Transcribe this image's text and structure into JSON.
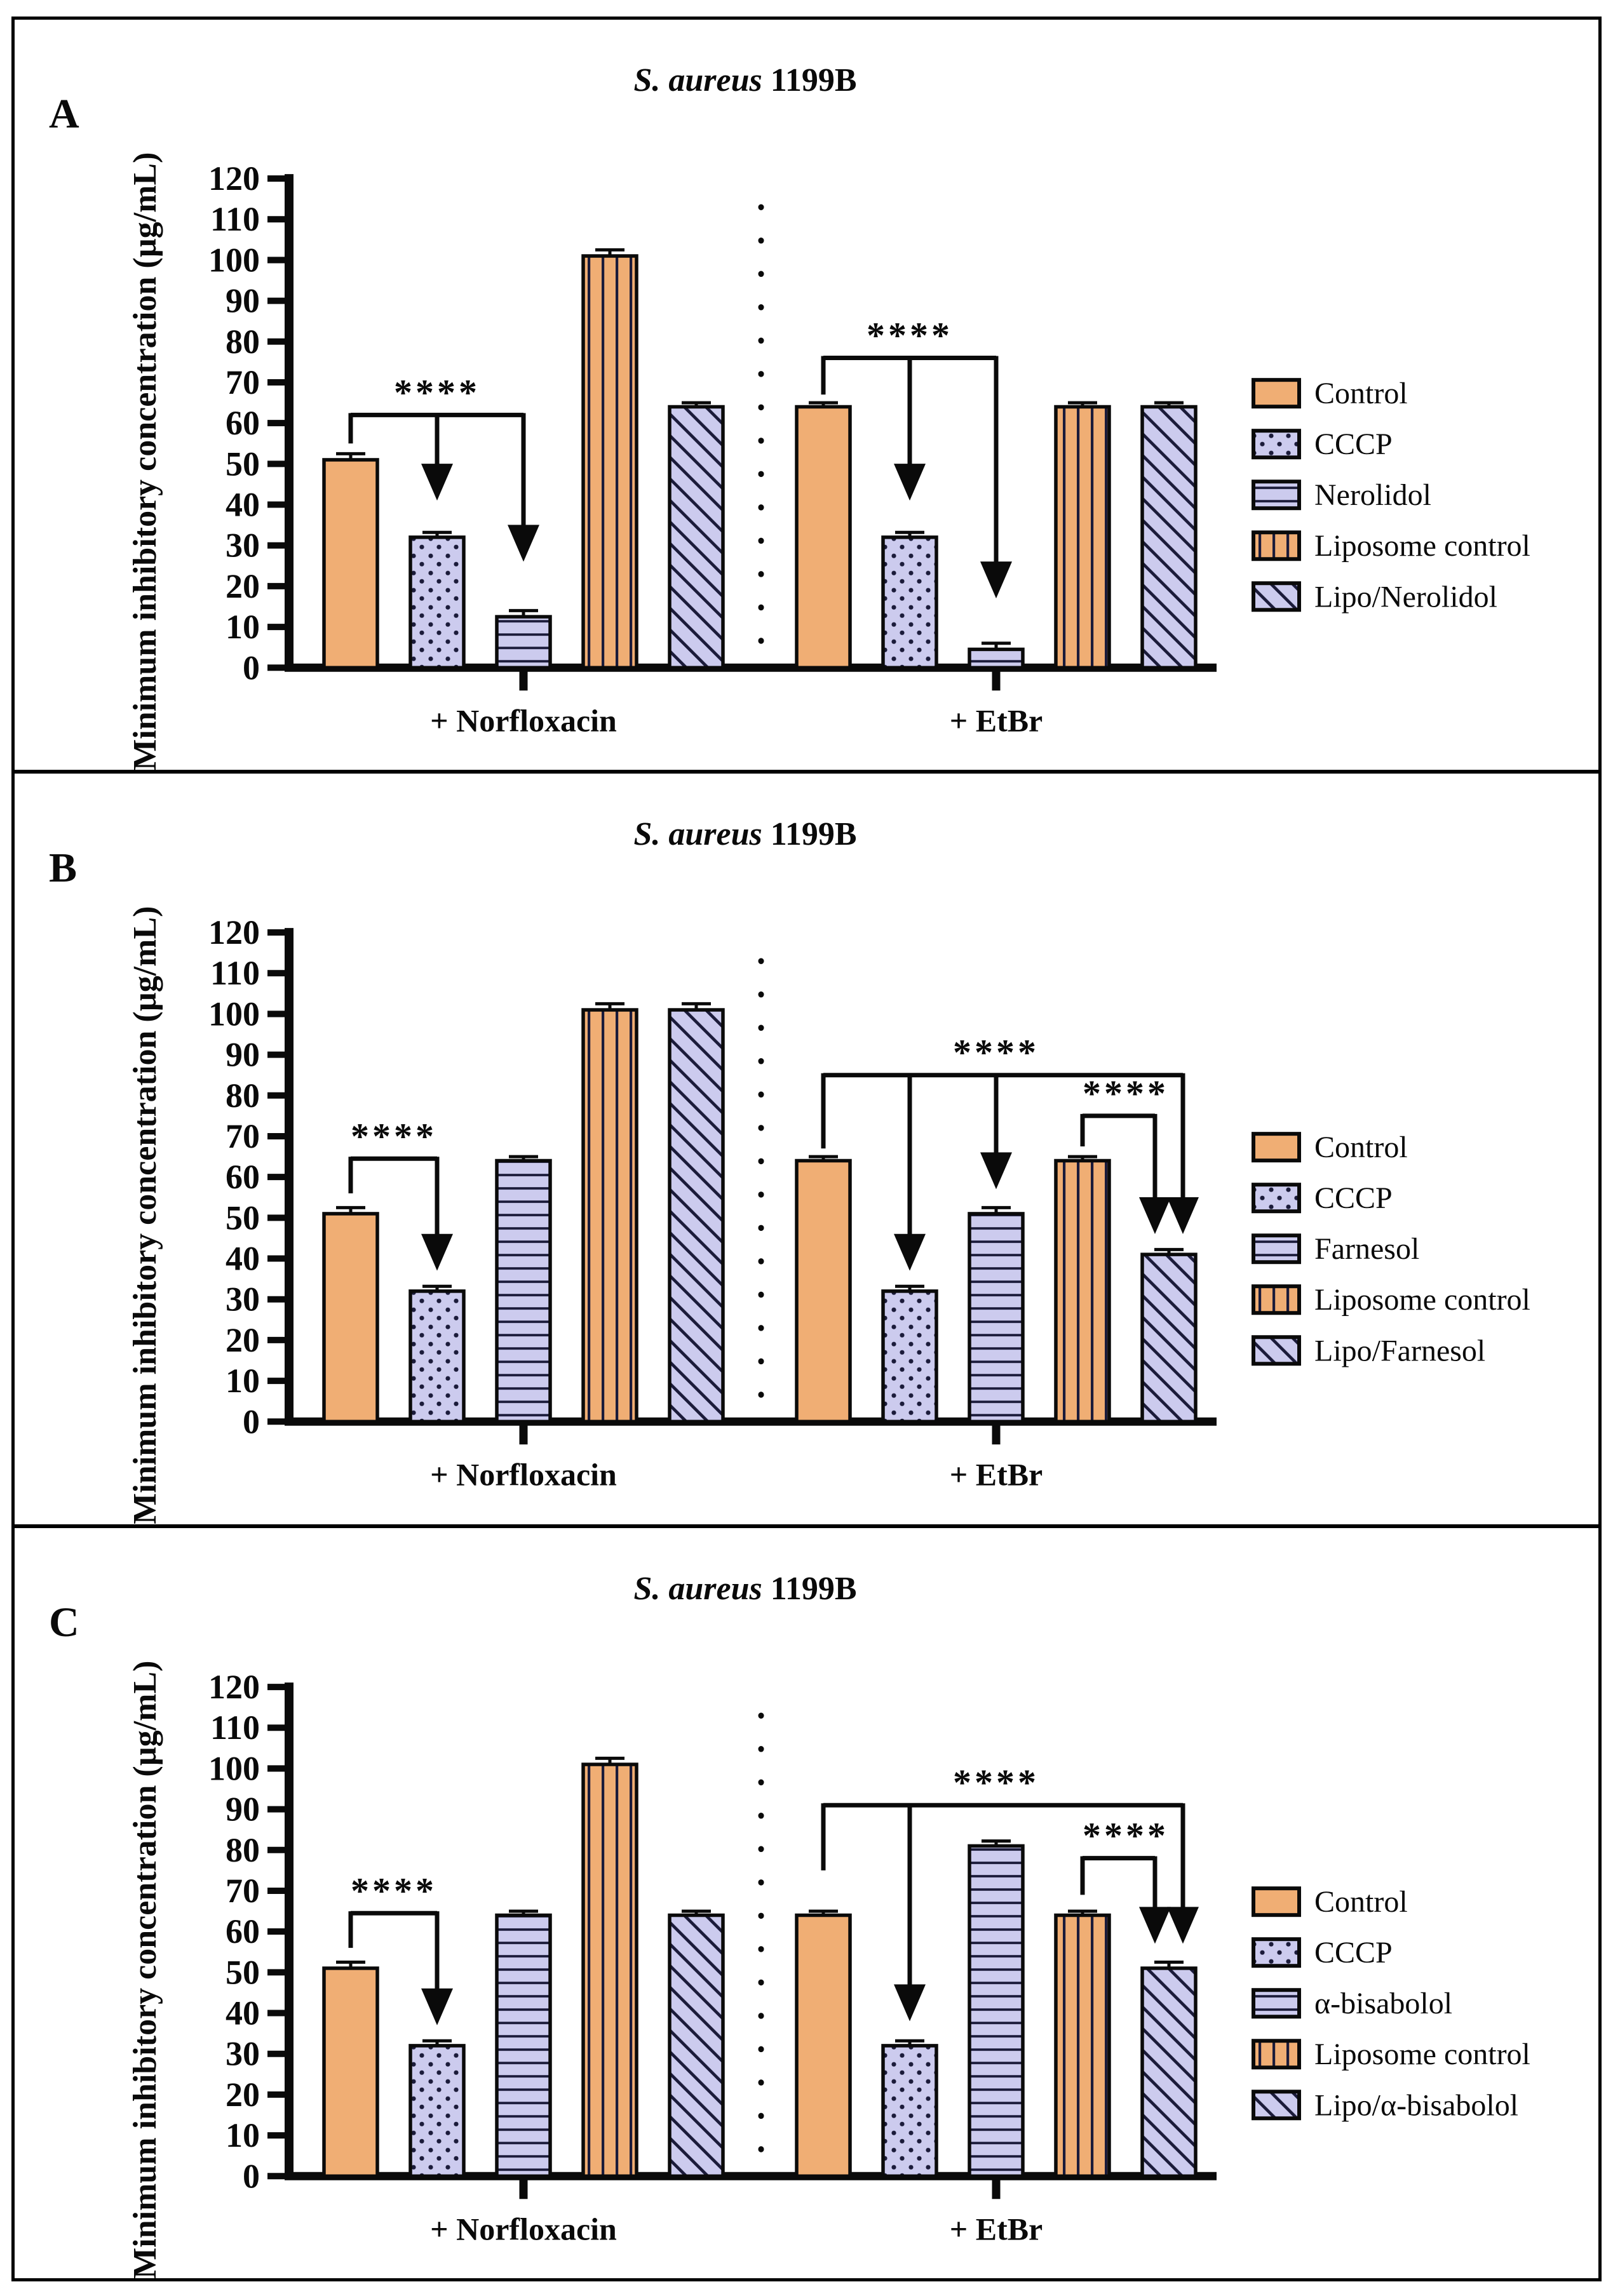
{
  "figure": {
    "background": "#ffffff",
    "border_color": "#000000"
  },
  "colors": {
    "orange": "#f0ae74",
    "periwinkle": "#cccbee",
    "pattern_line": "#1b1b3a",
    "ink": "#0a0a0a"
  },
  "chart_data": [
    {
      "type": "bar",
      "panel_label": "A",
      "title": {
        "italic": "S. aureus",
        "rest": " 1199B"
      },
      "ylabel": "Minimum inhibitory concentration (µg/mL)",
      "ylim": [
        0,
        120
      ],
      "ytick_step": 10,
      "grid": false,
      "legend_position": "right",
      "series": [
        {
          "name": "Control",
          "pattern": "solid"
        },
        {
          "name": "CCCP",
          "pattern": "dots"
        },
        {
          "name": "Nerolidol",
          "pattern": "hlines"
        },
        {
          "name": "Liposome control",
          "pattern": "vlines"
        },
        {
          "name": "Lipo/Nerolidol",
          "pattern": "diag"
        }
      ],
      "groups": [
        {
          "label": "+ Norfloxacin",
          "values": [
            51,
            32,
            12.5,
            101,
            64
          ],
          "errors": [
            1.5,
            1.2,
            1.5,
            1.5,
            1
          ]
        },
        {
          "label": "+ EtBr",
          "values": [
            64,
            32,
            4.5,
            64,
            64
          ],
          "errors": [
            1,
            1.2,
            1.5,
            1,
            1
          ]
        }
      ],
      "significance": [
        {
          "label": "****",
          "y": 62,
          "x1": [
            0,
            0
          ],
          "x2": [
            0,
            2
          ],
          "drop_to": 55,
          "arrows": [
            [
              0,
              1,
              41,
              0
            ],
            [
              0,
              2,
              26,
              0
            ]
          ],
          "stars_at": [
            0,
            1
          ]
        },
        {
          "label": "****",
          "y": 76,
          "x1": [
            1,
            0
          ],
          "x2": [
            1,
            2
          ],
          "drop_to": 67,
          "arrows": [
            [
              1,
              1,
              41,
              0
            ],
            [
              1,
              2,
              17,
              0
            ]
          ],
          "stars_at": [
            1,
            1
          ]
        }
      ]
    },
    {
      "type": "bar",
      "panel_label": "B",
      "title": {
        "italic": "S. aureus",
        "rest": " 1199B"
      },
      "ylabel": "Minimum inhibitory concentration (µg/mL)",
      "ylim": [
        0,
        120
      ],
      "ytick_step": 10,
      "grid": false,
      "legend_position": "right",
      "series": [
        {
          "name": "Control",
          "pattern": "solid"
        },
        {
          "name": "CCCP",
          "pattern": "dots"
        },
        {
          "name": "Farnesol",
          "pattern": "hlines"
        },
        {
          "name": "Liposome control",
          "pattern": "vlines"
        },
        {
          "name": "Lipo/Farnesol",
          "pattern": "diag"
        }
      ],
      "groups": [
        {
          "label": "+ Norfloxacin",
          "values": [
            51,
            32,
            64,
            101,
            101
          ],
          "errors": [
            1.5,
            1.2,
            1,
            1.5,
            1.5
          ]
        },
        {
          "label": "+ EtBr",
          "values": [
            64,
            32,
            51,
            64,
            41
          ],
          "errors": [
            1,
            1.2,
            1.5,
            1,
            1.2
          ]
        }
      ],
      "significance": [
        {
          "label": "****",
          "y": 64.5,
          "x1": [
            0,
            0
          ],
          "x2": [
            0,
            1
          ],
          "drop_to": 56,
          "arrows": [
            [
              0,
              1,
              37,
              0
            ]
          ],
          "stars_at": [
            0,
            0.5
          ]
        },
        {
          "label": "****",
          "y": 85,
          "x1": [
            1,
            0
          ],
          "x2": [
            1,
            4
          ],
          "x2_dx": 22,
          "drop_to": 67,
          "arrows": [
            [
              1,
              1,
              37,
              0
            ],
            [
              1,
              2,
              57,
              0
            ],
            [
              1,
              4,
              46,
              22
            ]
          ],
          "stars_at": [
            1,
            2
          ]
        },
        {
          "label": "****",
          "y": 75,
          "x1": [
            1,
            3
          ],
          "x2": [
            1,
            4
          ],
          "x2_dx": -22,
          "drop_to": 67.5,
          "arrows": [
            [
              1,
              4,
              46,
              -22
            ]
          ],
          "stars_at": [
            1,
            3.5
          ]
        }
      ]
    },
    {
      "type": "bar",
      "panel_label": "C",
      "title": {
        "italic": "S. aureus",
        "rest": " 1199B"
      },
      "ylabel": "Minimum inhibitory concentration (µg/mL)",
      "ylim": [
        0,
        120
      ],
      "ytick_step": 10,
      "grid": false,
      "legend_position": "right",
      "series": [
        {
          "name": "Control",
          "pattern": "solid"
        },
        {
          "name": "CCCP",
          "pattern": "dots"
        },
        {
          "name": "α-bisabolol",
          "pattern": "hlines"
        },
        {
          "name": "Liposome control",
          "pattern": "vlines"
        },
        {
          "name": "Lipo/α-bisabolol",
          "pattern": "diag"
        }
      ],
      "groups": [
        {
          "label": "+ Norfloxacin",
          "values": [
            51,
            32,
            64,
            101,
            64
          ],
          "errors": [
            1.5,
            1.2,
            1,
            1.5,
            1
          ]
        },
        {
          "label": "+ EtBr",
          "values": [
            64,
            32,
            81,
            64,
            51
          ],
          "errors": [
            1,
            1.2,
            1.2,
            1,
            1.5
          ]
        }
      ],
      "significance": [
        {
          "label": "****",
          "y": 64.5,
          "x1": [
            0,
            0
          ],
          "x2": [
            0,
            1
          ],
          "drop_to": 56,
          "arrows": [
            [
              0,
              1,
              37,
              0
            ]
          ],
          "stars_at": [
            0,
            0.5
          ]
        },
        {
          "label": "****",
          "y": 91,
          "x1": [
            1,
            0
          ],
          "x2": [
            1,
            4
          ],
          "x2_dx": 22,
          "drop_to": 75,
          "arrows": [
            [
              1,
              1,
              38,
              0
            ],
            [
              1,
              4,
              57,
              22
            ]
          ],
          "stars_at": [
            1,
            2
          ]
        },
        {
          "label": "****",
          "y": 78,
          "x1": [
            1,
            3
          ],
          "x2": [
            1,
            4
          ],
          "x2_dx": -22,
          "drop_to": 69,
          "arrows": [
            [
              1,
              4,
              57,
              -22
            ]
          ],
          "stars_at": [
            1,
            3.5
          ]
        }
      ]
    }
  ]
}
